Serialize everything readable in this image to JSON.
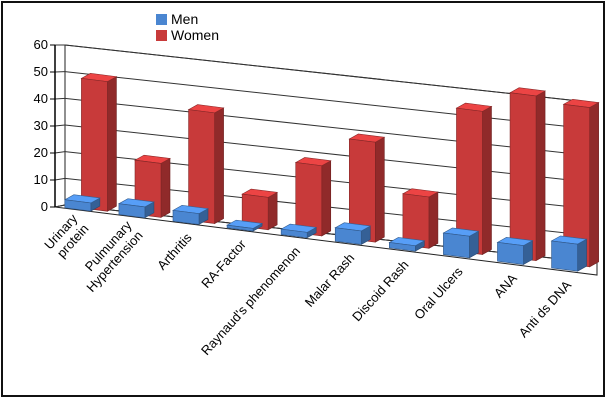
{
  "chart_data": {
    "type": "bar",
    "categories": [
      "Urinary protein",
      "Pulmunary Hypertension",
      "Arthritis",
      "RA-Factor",
      "Raynaud's phenomenon",
      "Malar Rash",
      "Discoid Rash",
      "Oral Ulcers",
      "ANA",
      "Anti ds DNA"
    ],
    "category_lines": [
      [
        "Urinary",
        "protein"
      ],
      [
        "Pulmunary",
        "Hypertension"
      ],
      [
        "Arthritis"
      ],
      [
        "RA-Factor"
      ],
      [
        "Raynaud's phenomenon"
      ],
      [
        "Malar Rash"
      ],
      [
        "Discoid Rash"
      ],
      [
        "Oral Ulcers"
      ],
      [
        "ANA"
      ],
      [
        "Anti ds DNA"
      ]
    ],
    "series": [
      {
        "name": "Men",
        "values": [
          3,
          4,
          4,
          1,
          2,
          5,
          2,
          8,
          7,
          10
        ],
        "color": "#4a86d1"
      },
      {
        "name": "Women",
        "values": [
          48,
          20,
          41,
          12,
          26,
          37,
          19,
          53,
          61,
          59
        ],
        "color": "#c83a3a"
      }
    ],
    "yticks": [
      0,
      10,
      20,
      30,
      40,
      50,
      60
    ],
    "ylim": [
      0,
      60
    ],
    "grid": true,
    "legend": "top-left",
    "title": "",
    "xlabel": "",
    "ylabel": ""
  }
}
